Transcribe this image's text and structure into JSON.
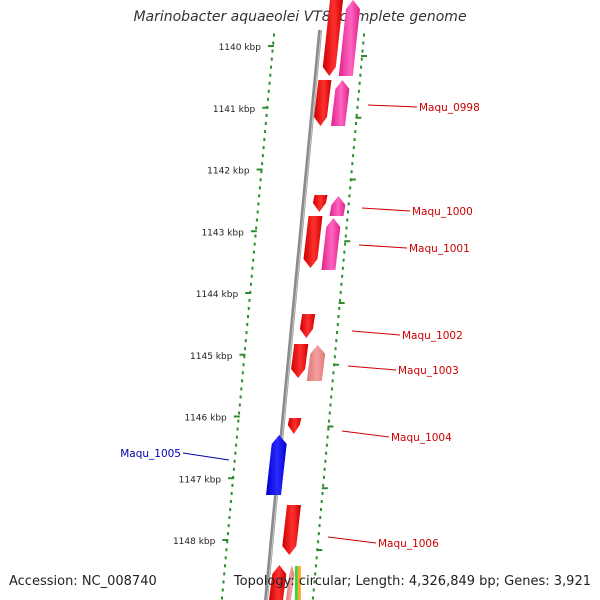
{
  "title": "Marinobacter aquaeolei VT8, complete genome",
  "footer": {
    "accession": "Accession: NC_008740",
    "summary": "Topology: circular; Length: 4,326,849 bp; Genes: 3,921"
  },
  "colors": {
    "backbone": "#8a8a8a",
    "ruler_dots": "#2e8b2e",
    "gene_red": "#ee0000",
    "gene_pink": "#ff44aa",
    "gene_salmon": "#ee8888",
    "gene_blue": "#0000ee",
    "label_red": "#cc0000",
    "label_blue": "#0000aa"
  },
  "scale": {
    "ticks": [
      {
        "kbp": 1140,
        "label": "1140 kbp"
      },
      {
        "kbp": 1141,
        "label": "1141 kbp"
      },
      {
        "kbp": 1142,
        "label": "1142 kbp"
      },
      {
        "kbp": 1143,
        "label": "1143 kbp"
      },
      {
        "kbp": 1144,
        "label": "1144 kbp"
      },
      {
        "kbp": 1145,
        "label": "1145 kbp"
      },
      {
        "kbp": 1146,
        "label": "1146 kbp"
      },
      {
        "kbp": 1147,
        "label": "1147 kbp"
      },
      {
        "kbp": 1148,
        "label": "1148 kbp"
      }
    ]
  },
  "gene_labels": [
    {
      "text": "Maqu_0998",
      "side": "right",
      "color": "red"
    },
    {
      "text": "Maqu_1000",
      "side": "right",
      "color": "red"
    },
    {
      "text": "Maqu_1001",
      "side": "right",
      "color": "red"
    },
    {
      "text": "Maqu_1002",
      "side": "right",
      "color": "red"
    },
    {
      "text": "Maqu_1003",
      "side": "right",
      "color": "red"
    },
    {
      "text": "Maqu_1004",
      "side": "right",
      "color": "red"
    },
    {
      "text": "Maqu_1005",
      "side": "left",
      "color": "blue"
    },
    {
      "text": "Maqu_1006",
      "side": "right",
      "color": "red"
    }
  ]
}
